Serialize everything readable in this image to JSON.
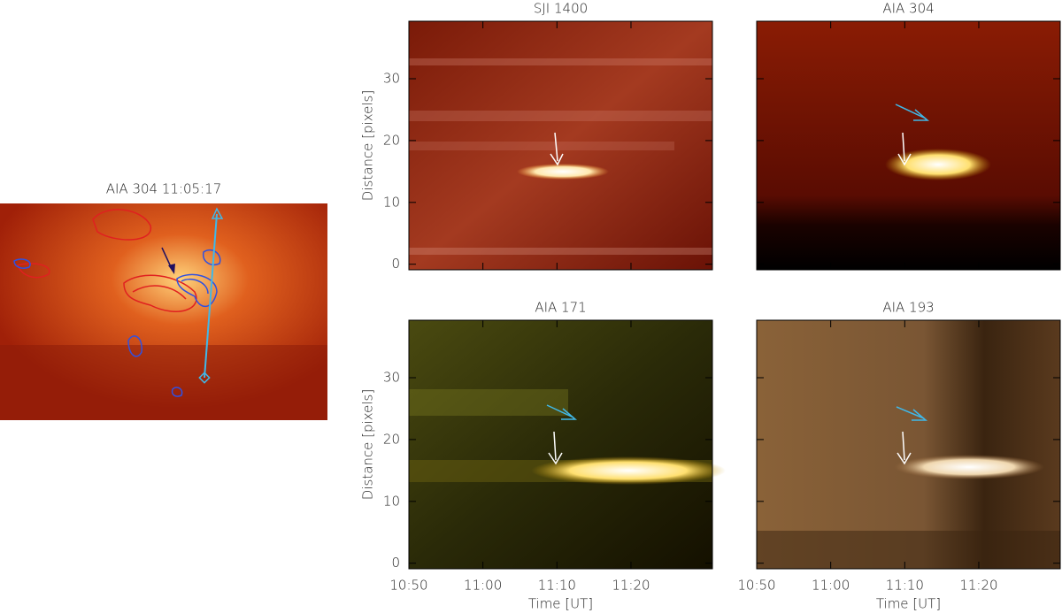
{
  "chart_data": [
    {
      "type": "image",
      "title": "AIA 304 11:05:17"
    },
    {
      "type": "timedistance",
      "title": "SJI 1400",
      "ylabel": "Distance [pixels]",
      "xlim": [
        "10:50",
        "11:31"
      ],
      "xticks": [
        "10:50",
        "11:00",
        "11:10",
        "11:20"
      ],
      "ylim": [
        -0.9,
        39.3
      ],
      "yticks": [
        0,
        10,
        20,
        30
      ]
    },
    {
      "type": "timedistance",
      "title": "AIA 304",
      "xlim": [
        "10:50",
        "11:31"
      ],
      "xticks": [
        "10:50",
        "11:00",
        "11:10",
        "11:20"
      ],
      "ylim": [
        -0.9,
        39.3
      ],
      "yticks": [
        0,
        10,
        20,
        30
      ]
    },
    {
      "type": "timedistance",
      "title": "AIA 171",
      "ylabel": "Distance [pixels]",
      "xlabel": "Time [UT]",
      "xlim": [
        "10:50",
        "11:31"
      ],
      "xticks": [
        "10:50",
        "11:00",
        "11:10",
        "11:20"
      ],
      "ylim": [
        -0.9,
        39.3
      ],
      "yticks": [
        0,
        10,
        20,
        30
      ]
    },
    {
      "type": "timedistance",
      "title": "AIA 193",
      "xlabel": "Time [UT]",
      "xlim": [
        "10:50",
        "11:31"
      ],
      "xticks": [
        "10:50",
        "11:00",
        "11:10",
        "11:20"
      ],
      "ylim": [
        -0.9,
        39.3
      ],
      "yticks": [
        0,
        10,
        20,
        30
      ]
    }
  ]
}
